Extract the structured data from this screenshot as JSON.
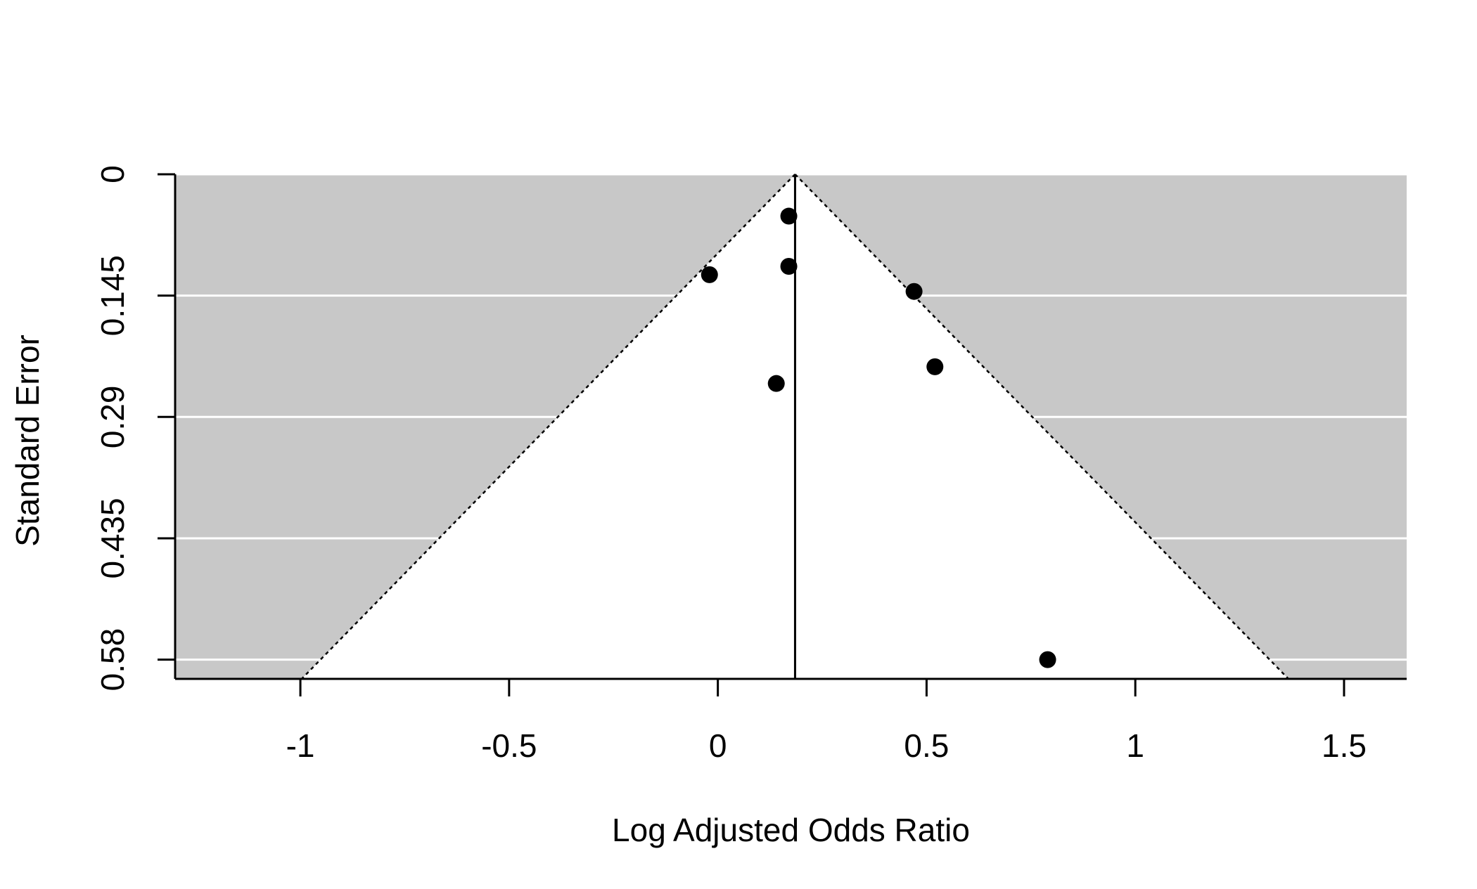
{
  "chart_data": {
    "type": "scatter",
    "subtype": "funnel",
    "title": "",
    "xlabel": "Log Adjusted Odds Ratio",
    "ylabel": "Standard Error",
    "xlim": [
      -1.3,
      1.65
    ],
    "ylim": [
      0.0,
      0.603
    ],
    "y_reversed": true,
    "x_ticks": [
      -1,
      -0.5,
      0,
      0.5,
      1,
      1.5
    ],
    "x_tick_labels": [
      "-1",
      "-0.5",
      "0",
      "0.5",
      "1",
      "1.5"
    ],
    "y_ticks": [
      0,
      0.145,
      0.29,
      0.435,
      0.58
    ],
    "y_tick_labels": [
      "0",
      "0.145",
      "0.29",
      "0.435",
      "0.58"
    ],
    "grid": true,
    "grid_color": "#ffffff",
    "background_color": "#c8c8c8",
    "funnel_color": "#ffffff",
    "point_color": "#000000",
    "center_estimate": 0.185,
    "funnel_z": 1.96,
    "points": [
      {
        "x": 0.17,
        "y": 0.05
      },
      {
        "x": 0.17,
        "y": 0.11
      },
      {
        "x": -0.02,
        "y": 0.12
      },
      {
        "x": 0.47,
        "y": 0.14
      },
      {
        "x": 0.52,
        "y": 0.23
      },
      {
        "x": 0.14,
        "y": 0.25
      },
      {
        "x": 0.79,
        "y": 0.58
      }
    ]
  }
}
